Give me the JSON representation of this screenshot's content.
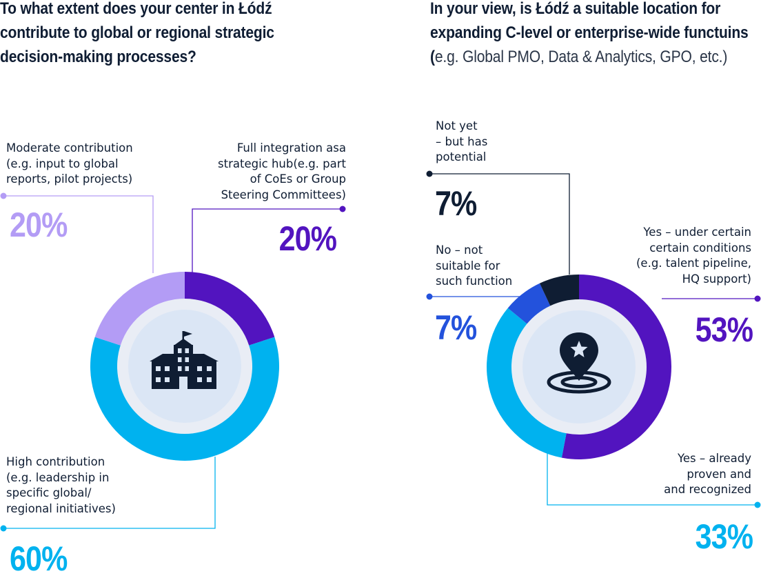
{
  "colors": {
    "light_purple": "#b39cf5",
    "purple": "#5214bf",
    "cyan": "#00b2ef",
    "blue": "#2352dc",
    "navy": "#0f1d33",
    "inner_ring": "#e9edf5",
    "inner_disc": "#dbe6f5"
  },
  "chart_data": [
    {
      "type": "pie",
      "style": "donut",
      "title": "To what extent does your center in Łódź contribute to global or regional strategic decision-making processes?",
      "center_icon": "school-building-icon",
      "categories": [
        "Full integration asa strategic hub(e.g. part of CoEs or Group Steering Committees)",
        "High contribution (e.g. leadership in specific global/ regional initiatives)",
        "Moderate contribution (e.g. input to global reports, pilot projects)"
      ],
      "values": [
        20,
        60,
        20
      ],
      "labels": [
        "20%",
        "60%",
        "20%"
      ],
      "colors": [
        "#5214bf",
        "#00b2ef",
        "#b39cf5"
      ]
    },
    {
      "type": "pie",
      "style": "donut",
      "title": "In your view, is Łódź a suitable location for expanding C-level or enterprise-wide functuins (e.g. Global PMO, Data & Analytics, GPO, etc.)",
      "center_icon": "location-star-icon",
      "categories": [
        "Yes – under certain certain conditions (e.g. talent pipeline, HQ support)",
        "Yes – already proven and and recognized",
        "No – not suitable for such function",
        "Not yet – but has potential"
      ],
      "values": [
        53,
        33,
        7,
        7
      ],
      "labels": [
        "53%",
        "33%",
        "7%",
        "7%"
      ],
      "colors": [
        "#5214bf",
        "#00b2ef",
        "#2352dc",
        "#0f1d33"
      ]
    }
  ],
  "left": {
    "title_bold": "To what extent does your center in Łódź contribute to global or regional strategic decision-making processes?",
    "moderate_label": "Moderate contribution\n(e.g. input to global\nreports, pilot projects)",
    "moderate_pct": "20%",
    "full_label": "Full integration asa\nstrategic hub(e.g. part\nof CoEs or Group\nSteering Committees)",
    "full_pct": "20%",
    "high_label": "High contribution\n(e.g. leadership in\nspecific global/\nregional initiatives)",
    "high_pct": "60%"
  },
  "right": {
    "title_bold": "In your view, is Łódź a suitable location for expanding C-level or enterprise-wide functuins (",
    "title_light": "e.g. Global PMO, Data & Analytics, GPO, etc.)",
    "notyet_label": "Not yet\n– but has\npotential",
    "notyet_pct": "7%",
    "no_label": "No – not\nsuitable for\nsuch function",
    "no_pct": "7%",
    "yes_cond_label": "Yes – under certain\ncertain conditions\n(e.g. talent pipeline,\nHQ support)",
    "yes_cond_pct": "53%",
    "yes_proven_label": "Yes – already\nproven and\nand recognized",
    "yes_proven_pct": "33%"
  }
}
